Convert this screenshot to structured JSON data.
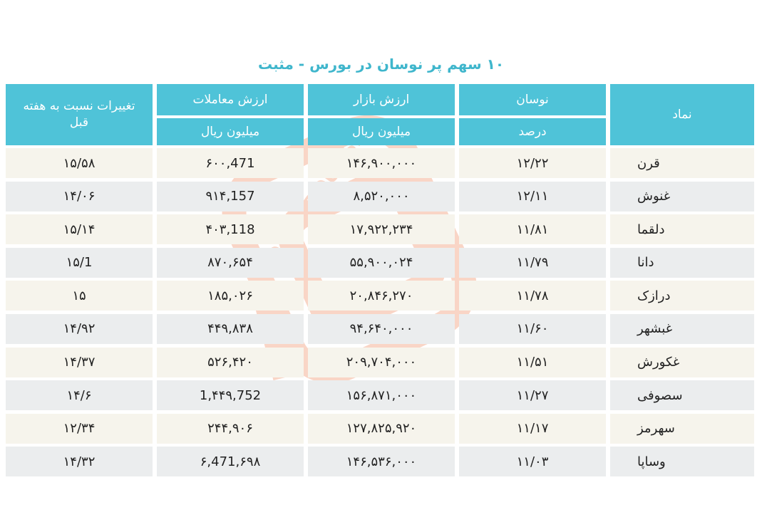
{
  "title": "۱۰ سهم پر نوسان در بورس - مثبت",
  "watermark": "SEDAYE BOURSE",
  "colors": {
    "header": "#4fc3d8",
    "title": "#3fb6cc",
    "row_odd": "#f6f4ec",
    "row_even": "#ebedee",
    "watermark": "#f08a5d"
  },
  "headers": {
    "symbol": "نماد",
    "fluctuation": "نوسان",
    "fluctuation_unit": "درصد",
    "market_value": "ارزش بازار",
    "market_value_unit": "میلیون ریال",
    "trade_value": "ارزش معاملات",
    "trade_value_unit": "میلیون ریال",
    "weekly_change": "تغییرات نسبت به هفته قبل"
  },
  "rows": [
    {
      "symbol": "قرن",
      "fluctuation": "۱۲/۲۲",
      "market_value": "۱۴۶,۹۰۰,۰۰۰",
      "trade_value": "۶۰۰,471",
      "weekly_change": "۱۵/۵۸"
    },
    {
      "symbol": "غنوش",
      "fluctuation": "۱۲/۱۱",
      "market_value": "۸,۵۲۰,۰۰۰",
      "trade_value": "۹۱۴,157",
      "weekly_change": "۱۴/۰۶"
    },
    {
      "symbol": "دلقما",
      "fluctuation": "۱۱/۸۱",
      "market_value": "۱۷,۹۲۲,۲۳۴",
      "trade_value": "۴۰۳,118",
      "weekly_change": "۱۵/۱۴"
    },
    {
      "symbol": "دانا",
      "fluctuation": "۱۱/۷۹",
      "market_value": "۵۵,۹۰۰,۰۲۴",
      "trade_value": "۸۷۰,۶۵۴",
      "weekly_change": "۱۵/1"
    },
    {
      "symbol": "درازک",
      "fluctuation": "۱۱/۷۸",
      "market_value": "۲۰,۸۴۶,۲۷۰",
      "trade_value": "۱۸۵,۰۲۶",
      "weekly_change": "۱۵"
    },
    {
      "symbol": "غبشهر",
      "fluctuation": "۱۱/۶۰",
      "market_value": "۹۴,۶۴۰,۰۰۰",
      "trade_value": "۴۴۹,۸۳۸",
      "weekly_change": "۱۴/۹۲"
    },
    {
      "symbol": "غکورش",
      "fluctuation": "۱۱/۵۱",
      "market_value": "۲۰۹,۷۰۴,۰۰۰",
      "trade_value": "۵۲۶,۴۲۰",
      "weekly_change": "۱۴/۳۷"
    },
    {
      "symbol": "سصوفی",
      "fluctuation": "۱۱/۲۷",
      "market_value": "۱۵۶,۸۷۱,۰۰۰",
      "trade_value": "1,۴۴۹,752",
      "weekly_change": "۱۴/۶"
    },
    {
      "symbol": "سهرمز",
      "fluctuation": "۱۱/۱۷",
      "market_value": "۱۲۷,۸۲۵,۹۲۰",
      "trade_value": "۲۴۴,۹۰۶",
      "weekly_change": "۱۲/۳۴"
    },
    {
      "symbol": "وساپا",
      "fluctuation": "۱۱/۰۳",
      "market_value": "۱۴۶,۵۳۶,۰۰۰",
      "trade_value": "۶,471,۶۹۸",
      "weekly_change": "۱۴/۳۲"
    }
  ]
}
